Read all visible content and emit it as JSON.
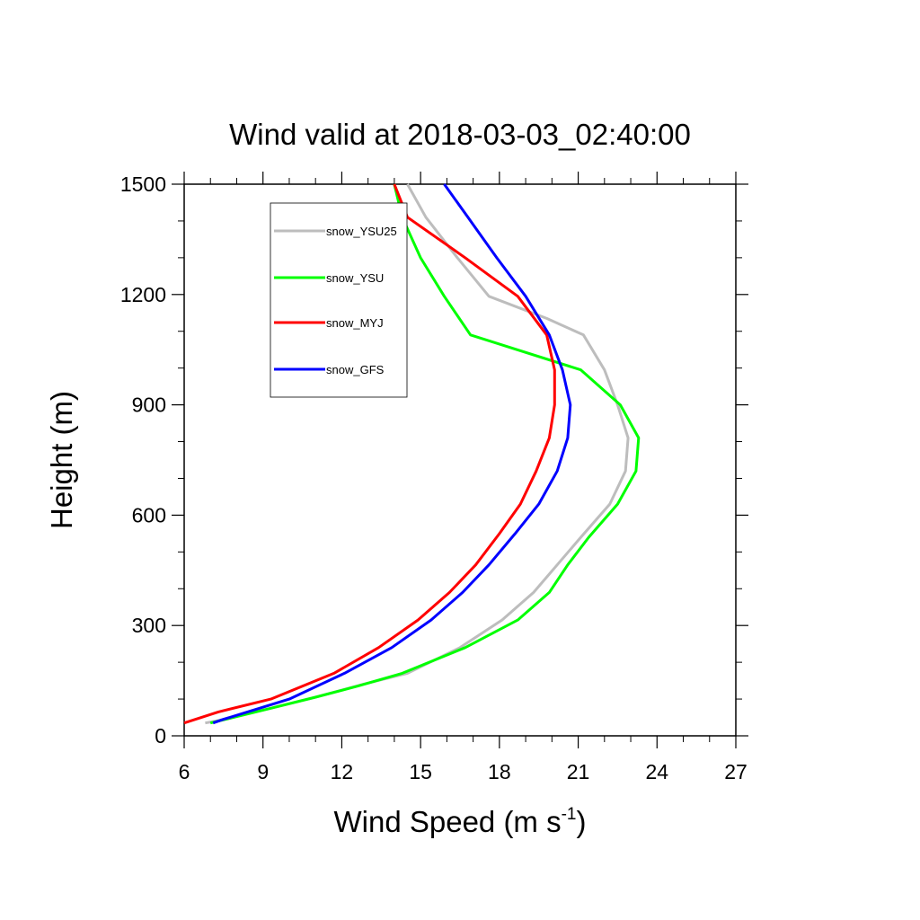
{
  "chart_data": {
    "type": "line",
    "title": "Wind valid at 2018-03-03_02:40:00",
    "xlabel": "Wind Speed (m s",
    "xlabel_sup": "-1",
    "xlabel_end": ")",
    "ylabel": "Height (m)",
    "xlim": [
      6,
      27
    ],
    "ylim": [
      0,
      1500
    ],
    "xticks": [
      6,
      9,
      12,
      15,
      18,
      21,
      24,
      27
    ],
    "yticks": [
      0,
      300,
      600,
      900,
      1200,
      1500
    ],
    "grid": false,
    "legend_position": "top-left",
    "series": [
      {
        "name": "snow_YSU25",
        "color": "#bdbdbd",
        "points": [
          [
            6.8,
            35
          ],
          [
            7.2,
            40
          ],
          [
            9.3,
            75
          ],
          [
            11.0,
            105
          ],
          [
            12.8,
            140
          ],
          [
            14.5,
            170
          ],
          [
            16.5,
            240
          ],
          [
            18.1,
            315
          ],
          [
            19.3,
            390
          ],
          [
            20.2,
            465
          ],
          [
            21.1,
            540
          ],
          [
            22.2,
            630
          ],
          [
            22.8,
            720
          ],
          [
            22.9,
            810
          ],
          [
            22.5,
            900
          ],
          [
            22.0,
            995
          ],
          [
            21.2,
            1090
          ],
          [
            19.8,
            1135
          ],
          [
            17.6,
            1195
          ],
          [
            16.4,
            1300
          ],
          [
            15.2,
            1410
          ],
          [
            14.5,
            1500
          ]
        ]
      },
      {
        "name": "snow_YSU",
        "color": "#00ff00",
        "points": [
          [
            7.0,
            35
          ],
          [
            7.3,
            40
          ],
          [
            9.3,
            75
          ],
          [
            11.0,
            105
          ],
          [
            12.6,
            135
          ],
          [
            14.3,
            170
          ],
          [
            16.7,
            240
          ],
          [
            18.7,
            315
          ],
          [
            19.9,
            390
          ],
          [
            20.6,
            465
          ],
          [
            21.4,
            540
          ],
          [
            22.5,
            630
          ],
          [
            23.2,
            720
          ],
          [
            23.3,
            810
          ],
          [
            22.6,
            900
          ],
          [
            21.1,
            995
          ],
          [
            16.9,
            1090
          ],
          [
            15.9,
            1195
          ],
          [
            15.0,
            1300
          ],
          [
            14.3,
            1410
          ],
          [
            14.0,
            1500
          ]
        ]
      },
      {
        "name": "snow_MYJ",
        "color": "#ff0000",
        "points": [
          [
            6.0,
            35
          ],
          [
            7.3,
            65
          ],
          [
            9.3,
            100
          ],
          [
            11.7,
            170
          ],
          [
            13.4,
            240
          ],
          [
            14.9,
            315
          ],
          [
            16.1,
            390
          ],
          [
            17.1,
            465
          ],
          [
            18.0,
            550
          ],
          [
            18.8,
            630
          ],
          [
            19.4,
            720
          ],
          [
            19.9,
            810
          ],
          [
            20.1,
            900
          ],
          [
            20.1,
            995
          ],
          [
            19.8,
            1090
          ],
          [
            18.7,
            1195
          ],
          [
            16.7,
            1300
          ],
          [
            14.5,
            1410
          ],
          [
            14.0,
            1500
          ]
        ]
      },
      {
        "name": "snow_GFS",
        "color": "#0000ff",
        "points": [
          [
            7.1,
            35
          ],
          [
            7.5,
            45
          ],
          [
            10.0,
            100
          ],
          [
            12.1,
            170
          ],
          [
            13.9,
            240
          ],
          [
            15.4,
            315
          ],
          [
            16.6,
            390
          ],
          [
            17.6,
            465
          ],
          [
            18.6,
            550
          ],
          [
            19.5,
            630
          ],
          [
            20.2,
            720
          ],
          [
            20.6,
            810
          ],
          [
            20.7,
            900
          ],
          [
            20.4,
            995
          ],
          [
            19.9,
            1090
          ],
          [
            19.0,
            1195
          ],
          [
            17.9,
            1300
          ],
          [
            16.8,
            1410
          ],
          [
            15.9,
            1500
          ]
        ]
      }
    ]
  }
}
